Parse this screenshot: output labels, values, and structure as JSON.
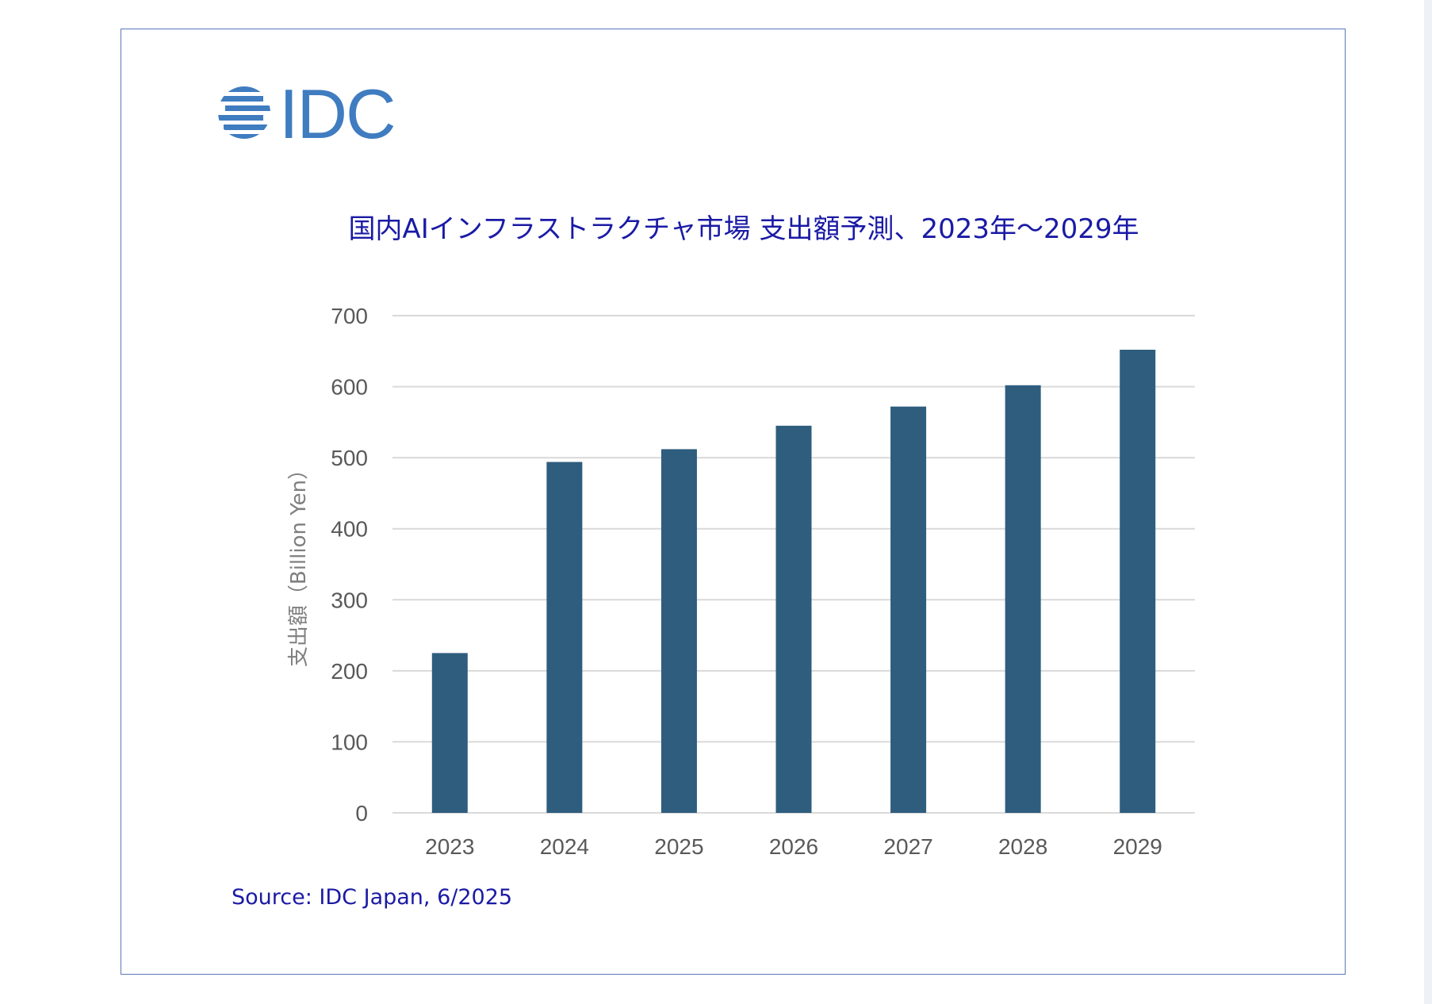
{
  "logo": {
    "text": "IDC",
    "color": "#3f7cc0"
  },
  "chart_data": {
    "type": "bar",
    "title": "国内AIインフラストラクチャ市場 支出額予測、2023年～2029年",
    "ylabel": "支出額（Billion Yen）",
    "xlabel": "",
    "categories": [
      "2023",
      "2024",
      "2025",
      "2026",
      "2027",
      "2028",
      "2029"
    ],
    "values": [
      225,
      494,
      512,
      545,
      572,
      602,
      652
    ],
    "ylim": [
      0,
      700
    ],
    "yticks": [
      0,
      100,
      200,
      300,
      400,
      500,
      600,
      700
    ],
    "grid": true,
    "bar_color": "#2e5d7e",
    "grid_color": "#d9d9d9",
    "title_color": "#1a1aa6"
  },
  "source": "Source: IDC Japan, 6/2025"
}
